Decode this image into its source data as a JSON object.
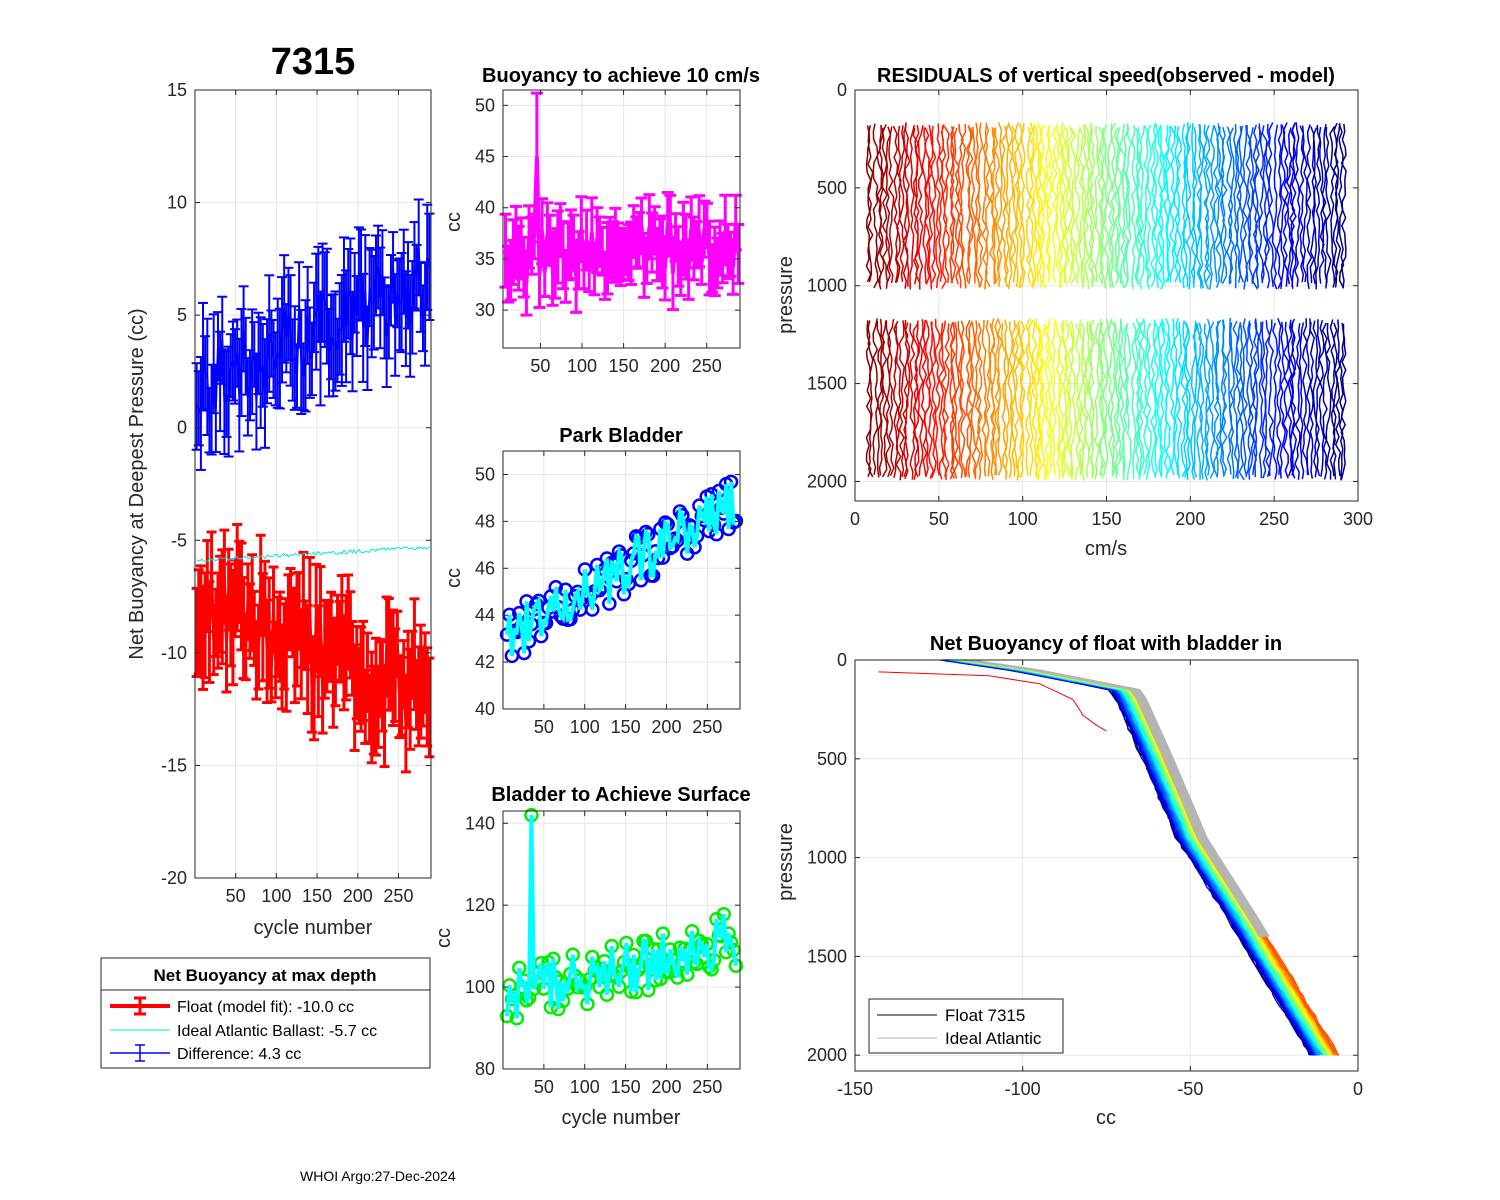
{
  "figure_title": "7315",
  "footer": "WHOI Argo:27-Dec-2024",
  "legend_box": {
    "title": "Net Buoyancy at max depth",
    "items": [
      {
        "label": "Float (model fit): -10.0 cc",
        "color": "#ff0000"
      },
      {
        "label": "Ideal Atlantic Ballast:  -5.7 cc",
        "color": "#00e5e5"
      },
      {
        "label": "Difference:   4.3 cc",
        "color": "#0000ff"
      }
    ]
  },
  "chart_data": [
    {
      "id": "net_buoyancy",
      "type": "line",
      "title": "7315",
      "xlabel": "cycle number",
      "ylabel": "Net Buoyancy at Deepest Pressure (cc)",
      "xlim": [
        0,
        290
      ],
      "ylim": [
        -20,
        15
      ],
      "xticks": [
        50,
        100,
        150,
        200,
        250
      ],
      "yticks": [
        -20,
        -15,
        -10,
        -5,
        0,
        5,
        10,
        15
      ],
      "series": [
        {
          "name": "Float (model fit)",
          "color": "#ff0000",
          "start": -7.5,
          "end": -12.0,
          "spread": 1.8,
          "err": 2.0
        },
        {
          "name": "Ideal Atlantic Ballast",
          "color": "#00e5e5",
          "start": -5.9,
          "end": -5.3,
          "spread": 0.08,
          "err": 0
        },
        {
          "name": "Difference",
          "color": "#0000ff",
          "start": 1.6,
          "end": 6.6,
          "spread": 1.8,
          "err": 2.0
        }
      ]
    },
    {
      "id": "buoyancy_10cms",
      "type": "line",
      "title": "Buoyancy to achieve 10 cm/s",
      "xlabel": "",
      "ylabel": "cc",
      "xlim": [
        5,
        290
      ],
      "ylim": [
        26.3,
        51.5
      ],
      "xticks": [
        50,
        100,
        150,
        200,
        250
      ],
      "yticks": [
        30,
        35,
        40,
        45,
        50
      ],
      "series": [
        {
          "name": "Buoyancy",
          "color": "#ff00ff",
          "start": 35.0,
          "end": 36.5,
          "spread": 2.5,
          "err": 3.0
        }
      ]
    },
    {
      "id": "park_bladder",
      "type": "scatter",
      "title": "Park Bladder",
      "xlabel": "",
      "ylabel": "cc",
      "xlim": [
        0,
        290
      ],
      "ylim": [
        40,
        51
      ],
      "xticks": [
        50,
        100,
        150,
        200,
        250
      ],
      "yticks": [
        40,
        42,
        44,
        46,
        48,
        50
      ],
      "series": [
        {
          "name": "Park bladder points",
          "color": "#0000ff",
          "start": 43.0,
          "end": 48.8,
          "spread": 1.1
        },
        {
          "name": "Park bladder line",
          "color": "#00ffff",
          "start": 43.0,
          "end": 48.8,
          "spread": 1.1
        }
      ]
    },
    {
      "id": "bladder_surface",
      "type": "scatter",
      "title": "Bladder to Achieve Surface",
      "xlabel": "cycle number",
      "ylabel": "cc",
      "xlim": [
        0,
        290
      ],
      "ylim": [
        80,
        143
      ],
      "xticks": [
        50,
        100,
        150,
        200,
        250
      ],
      "yticks": [
        80,
        100,
        120,
        140
      ],
      "series": [
        {
          "name": "Surface bladder points",
          "color": "#00ee00",
          "start": 97,
          "end": 112,
          "spread": 7
        },
        {
          "name": "Surface bladder line",
          "color": "#00ffff",
          "start": 97,
          "end": 112,
          "spread": 7
        }
      ]
    },
    {
      "id": "residuals",
      "type": "line",
      "title": "RESIDUALS of vertical speed(observed - model)",
      "xlabel": "cm/s",
      "ylabel": "pressure",
      "xlim": [
        0,
        300
      ],
      "ylim": [
        2100,
        0
      ],
      "xticks": [
        0,
        50,
        100,
        150,
        200,
        250,
        300
      ],
      "yticks": [
        0,
        500,
        1000,
        1500,
        2000
      ],
      "profile_count": 145,
      "profile_x_range": [
        8,
        292
      ],
      "pressure_segments": [
        [
          180,
          1020
        ],
        [
          1180,
          2000
        ]
      ]
    },
    {
      "id": "net_buoyancy_bladder_in",
      "type": "line",
      "title": "Net Buoyancy of float with bladder in",
      "xlabel": "cc",
      "ylabel": "pressure",
      "xlim": [
        -150,
        0
      ],
      "ylim": [
        2080,
        0
      ],
      "xticks": [
        -150,
        -100,
        -50,
        0
      ],
      "yticks": [
        0,
        500,
        1000,
        1500,
        2000
      ],
      "legend": [
        {
          "label": "Float 7315",
          "color": "#000000"
        },
        {
          "label": "Ideal Atlantic",
          "color": "#b4b4b4"
        }
      ],
      "profile_shape": [
        [
          -120,
          0
        ],
        [
          -100,
          50
        ],
        [
          -70,
          150
        ],
        [
          -68,
          200
        ],
        [
          -60,
          500
        ],
        [
          -50,
          900
        ],
        [
          -35,
          1300
        ],
        [
          -10,
          2000
        ]
      ]
    }
  ]
}
